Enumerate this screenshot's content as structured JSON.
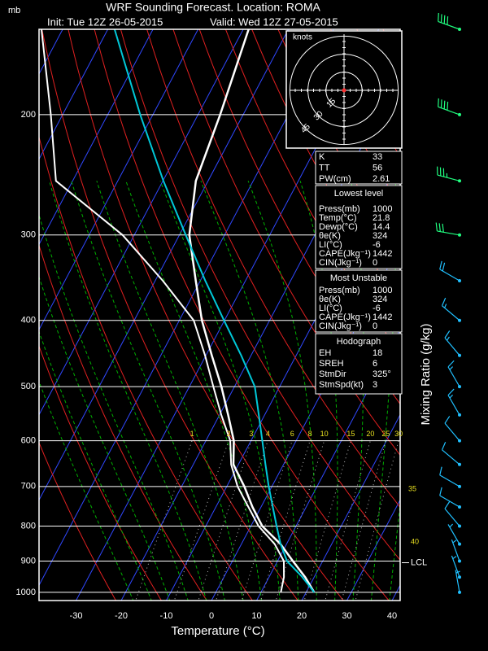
{
  "chart_data": {
    "type": "skewt",
    "title": "WRF Sounding Forecast. Location: ROMA",
    "init": "Init: Tue 12Z 26-05-2015",
    "valid": "Valid: Wed 12Z 27-05-2015",
    "y_unit": "mb",
    "xlabel": "Temperature (°C)",
    "y2label": "Mixing Ratio (g/kg)",
    "log_y": true,
    "xlim": [
      -38.2,
      41.8
    ],
    "ylim": [
      1028,
      150
    ],
    "xticks": [
      -30,
      -20,
      -10,
      0,
      10,
      20,
      30,
      40
    ],
    "yticks": [
      200,
      300,
      400,
      500,
      600,
      700,
      800,
      900,
      1000
    ],
    "pressure": [
      1000,
      950,
      900,
      850,
      800,
      750,
      700,
      650,
      600,
      550,
      500,
      450,
      400,
      350,
      300,
      250,
      200,
      150
    ],
    "series": [
      {
        "color": "#ffffff",
        "values": [
          21.8,
          18.0,
          13.4,
          8.7,
          2.5,
          -1.9,
          -6.1,
          -11.1,
          -13.8,
          -18.1,
          -22.9,
          -28.7,
          -35.0,
          -41.0,
          -47.8,
          -52.7,
          -55.1,
          -58.8
        ]
      },
      {
        "color": "#ffffff",
        "values": [
          14.4,
          13.3,
          11.4,
          7.4,
          1.7,
          -2.8,
          -7.6,
          -11.6,
          -14.6,
          -19.6,
          -24.7,
          -30.2,
          -36.8,
          -48.3,
          -62.6,
          -83.7,
          -92.6,
          -104.7
        ]
      },
      {
        "color": "#00c8d8",
        "values": [
          21.8,
          17.4,
          12.1,
          8.7,
          5.7,
          2.6,
          -0.7,
          -4.0,
          -7.5,
          -11.3,
          -15.5,
          -22.2,
          -30.1,
          -38.9,
          -48.6,
          -59.9,
          -72.8,
          -88.5
        ]
      }
    ],
    "mixing_ratio_labels": [
      1,
      2,
      3,
      4,
      6,
      8,
      10,
      15,
      20,
      25,
      30
    ],
    "moist_adiabat_labels": [
      35,
      40
    ],
    "lcl": {
      "label": "LCL",
      "pressure": 905
    },
    "wind": {
      "pressure": [
        150,
        200,
        250,
        300,
        350,
        400,
        450,
        500,
        550,
        600,
        650,
        700,
        750,
        800,
        850,
        900,
        950,
        1000
      ],
      "direction": [
        290,
        290,
        285,
        280,
        300,
        310,
        320,
        330,
        330,
        320,
        310,
        300,
        300,
        320,
        330,
        340,
        340,
        350
      ],
      "speed": [
        40,
        40,
        35,
        30,
        20,
        15,
        15,
        15,
        15,
        10,
        10,
        10,
        10,
        10,
        5,
        5,
        5,
        5
      ],
      "colors": [
        "#20ff80",
        "#20ff80",
        "#20ff80",
        "#20ff80",
        "#20c0ff",
        "#20c0ff",
        "#20c0ff",
        "#20c0ff",
        "#20c0ff",
        "#20c0ff",
        "#20c0ff",
        "#20c0ff",
        "#20c0ff",
        "#20c0ff",
        "#20c0ff",
        "#20c0ff",
        "#20c0ff",
        "#20c0ff"
      ]
    }
  },
  "hodograph": {
    "title": "knots",
    "rings": [
      15,
      30,
      45
    ]
  },
  "indices": {
    "stability": {
      "rows": [
        [
          "K",
          33
        ],
        [
          "TT",
          56
        ],
        [
          "PW(cm)",
          2.61
        ]
      ]
    },
    "lowest": {
      "title": "Lowest level",
      "rows": [
        [
          "Press(mb)",
          1000
        ],
        [
          "Temp(°C)",
          21.8
        ],
        [
          "Dewp(°C)",
          14.4
        ],
        [
          "θe(K)",
          324
        ],
        [
          "LI(°C)",
          -6
        ],
        [
          "CAPE(Jkg⁻¹)",
          1442
        ],
        [
          "CIN(Jkg⁻¹)",
          0
        ]
      ]
    },
    "most_unstable": {
      "title": "Most Unstable",
      "rows": [
        [
          "Press(mb)",
          1000
        ],
        [
          "θe(K)",
          324
        ],
        [
          "LI(°C)",
          -6
        ],
        [
          "CAPE(Jkg⁻¹)",
          1442
        ],
        [
          "CIN(Jkg⁻¹)",
          0
        ]
      ]
    },
    "hodograph": {
      "title": "Hodograph",
      "rows": [
        [
          "EH",
          18
        ],
        [
          "SREH",
          6
        ],
        [
          "StmDir",
          "325°"
        ],
        [
          "StmSpd(kt)",
          3
        ]
      ]
    }
  }
}
